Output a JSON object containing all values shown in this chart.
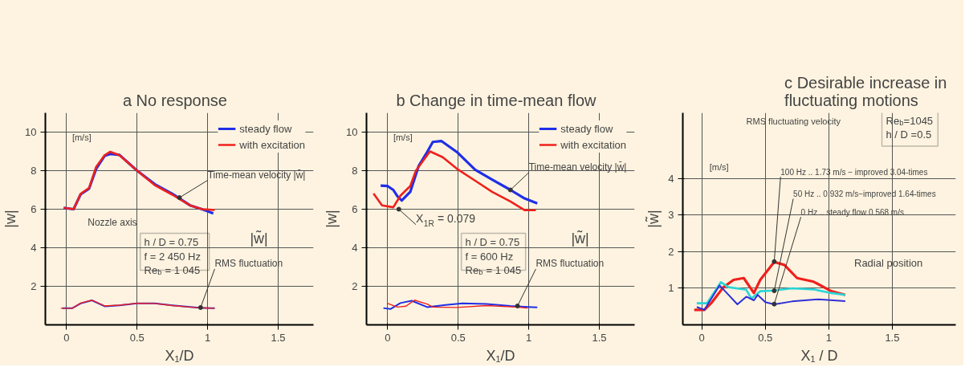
{
  "chart_data": [
    {
      "type": "line",
      "title": "No response",
      "xlabel": "X₁/D",
      "ylabel": "|w|",
      "xlim": [
        -0.15,
        1.75
      ],
      "ylim": [
        0,
        11
      ],
      "xticks": [
        0,
        0.5,
        1,
        1.5
      ],
      "yticks": [
        2,
        4,
        6,
        8,
        10
      ],
      "grid": true,
      "legend": "top right",
      "line_style": "solid",
      "marker": "none",
      "annotations": [
        "a",
        "[m/s]",
        "Nozzle axis",
        "h / D = 0.75\nf = 2 450 Hz\nRe$_{b}$ = 1 045",
        "|w̃|",
        {
          "text": "Time-mean velocity |w̄|",
          "x": 0.8,
          "y": 6.6
        },
        {
          "text": "RMS fluctuation",
          "x": 0.95,
          "y": 0.9
        }
      ],
      "series": [
        {
          "name": "steady flow",
          "color": "#1f2ee8",
          "x": [
            -0.02,
            0.05,
            0.1,
            0.16,
            0.21,
            0.27,
            0.31,
            0.375,
            0.5,
            0.625,
            0.75,
            0.875,
            0.96,
            1.04
          ],
          "values": [
            6.07,
            6.0,
            6.77,
            7.07,
            8.1,
            8.77,
            8.87,
            8.82,
            8.0,
            7.3,
            6.8,
            6.2,
            6.0,
            5.78
          ]
        },
        {
          "name": "with excitation",
          "color": "#f0201c",
          "x": [
            -0.02,
            0.05,
            0.1,
            0.16,
            0.21,
            0.27,
            0.31,
            0.375,
            0.5,
            0.625,
            0.75,
            0.875,
            0.96,
            1.05
          ],
          "values": [
            6.07,
            6.0,
            6.8,
            7.1,
            8.2,
            8.8,
            8.98,
            8.8,
            8.0,
            7.25,
            6.75,
            6.2,
            6.0,
            5.96
          ]
        },
        {
          "color": "#1f2ee8",
          "x": [
            -0.03,
            0.04,
            0.1,
            0.18,
            0.27,
            0.375,
            0.5,
            0.625,
            0.75,
            0.875,
            0.96,
            1.05
          ],
          "values": [
            0.86,
            0.86,
            1.11,
            1.27,
            0.96,
            1.01,
            1.11,
            1.11,
            1.01,
            0.93,
            0.88,
            0.86
          ]
        },
        {
          "color": "#f0201c",
          "x": [
            -0.04,
            0.04,
            0.1,
            0.18,
            0.27,
            0.375,
            0.5,
            0.625,
            0.75,
            0.875,
            0.96,
            1.05
          ],
          "values": [
            0.86,
            0.86,
            1.13,
            1.28,
            0.98,
            1.02,
            1.12,
            1.11,
            1.0,
            0.92,
            0.88,
            0.86
          ]
        }
      ]
    },
    {
      "type": "line",
      "title": "Change in time-mean flow",
      "xlabel": "X₁/D",
      "ylabel": "|w|",
      "xlim": [
        -0.15,
        1.75
      ],
      "ylim": [
        0,
        11
      ],
      "xticks": [
        0,
        0.5,
        1,
        1.5
      ],
      "yticks": [
        2,
        4,
        6,
        8,
        10
      ],
      "grid": true,
      "legend": "top right",
      "line_style": "solid",
      "marker": "none",
      "annotations": [
        "b",
        "[m/s]",
        "h / D = 0.75\nf = 600 Hz\nRe$_{b}$ = 1 045",
        "|w̃|",
        {
          "text": "X$_{1R}$ = 0.079",
          "x": 0.079,
          "y": 6
        },
        {
          "text": "Time-mean velocity |w̄|",
          "x": 0.87,
          "y": 7.0
        },
        {
          "text": "RMS fluctuation",
          "x": 0.92,
          "y": 0.98
        }
      ],
      "series": [
        {
          "name": "steady flow",
          "color": "#1f2ee8",
          "x": [
            -0.05,
            0,
            0.04,
            0.07,
            0.1,
            0.16,
            0.22,
            0.28,
            0.32,
            0.38,
            0.49,
            0.62,
            0.74,
            0.87,
            0.97,
            1.06
          ],
          "values": [
            7.22,
            7.2,
            7.0,
            6.66,
            6.45,
            6.9,
            8.25,
            8.97,
            9.49,
            9.54,
            8.97,
            8.05,
            7.54,
            7.0,
            6.56,
            6.3
          ]
        },
        {
          "name": "with excitation",
          "color": "#f0201c",
          "x": [
            -0.1,
            -0.04,
            0.04,
            0.09,
            0.16,
            0.2,
            0.3,
            0.39,
            0.49,
            0.62,
            0.74,
            0.87,
            0.97,
            1.05
          ],
          "values": [
            6.81,
            6.2,
            6.1,
            6.7,
            7.2,
            8.0,
            9.0,
            8.7,
            8.1,
            7.48,
            6.9,
            6.4,
            5.95,
            5.95
          ]
        },
        {
          "color": "#1f2ee8",
          "x": [
            -0.03,
            0.02,
            0.09,
            0.17,
            0.28,
            0.41,
            0.53,
            0.7,
            0.87,
            0.99,
            1.06
          ],
          "values": [
            0.87,
            0.82,
            1.13,
            1.25,
            0.92,
            1.03,
            1.11,
            1.08,
            0.98,
            0.93,
            0.91
          ]
        },
        {
          "color": "#f0201c",
          "x": [
            0,
            0.07,
            0.13,
            0.19,
            0.28,
            0.32,
            0.49,
            0.7,
            0.91,
            0.99
          ],
          "values": [
            1.11,
            0.92,
            0.97,
            1.28,
            1.08,
            0.92,
            0.9,
            1.0,
            0.92,
            0.87
          ]
        }
      ]
    },
    {
      "type": "line",
      "title": "Desirable increase in fluctuating motions",
      "xlabel": "X₁ / D",
      "ylabel": "|w̃|",
      "xlim": [
        -0.15,
        2.0
      ],
      "ylim": [
        0,
        5.8
      ],
      "xticks": [
        0,
        0.5,
        1,
        1.5
      ],
      "yticks": [
        1,
        2,
        3,
        4
      ],
      "grid": true,
      "line_style": "solid",
      "marker": "none",
      "annotations": [
        "c",
        "[m/s]",
        "RMS fluctuating velocity",
        "Re$_{b}$=1045\nh / D =0.5",
        "Radial position",
        {
          "text": "100 Hz .. 1.73 m/s − improved 3.04-times",
          "x": 0.57,
          "y": 1.73
        },
        {
          "text": "50 Hz .. 0.932 m/s−improved 1.64-times",
          "x": 0.57,
          "y": 0.932
        },
        {
          "text": "0 Hz .. steady flow 0.568 m/s",
          "x": 0.57,
          "y": 0.568
        }
      ],
      "series": [
        {
          "color": "#f0201c",
          "x": [
            -0.06,
            0.02,
            0.08,
            0.17,
            0.25,
            0.33,
            0.41,
            0.46,
            0.57,
            0.65,
            0.75,
            0.88,
            1.02,
            1.13
          ],
          "values": [
            0.41,
            0.41,
            0.62,
            1.03,
            1.23,
            1.28,
            0.87,
            1.23,
            1.72,
            1.64,
            1.28,
            1.18,
            0.92,
            0.82
          ]
        },
        {
          "color": "#2ad4d8",
          "x": [
            -0.04,
            0.04,
            0.15,
            0.21,
            0.35,
            0.39,
            0.46,
            0.57,
            0.71,
            0.88,
            1.02,
            1.13
          ],
          "values": [
            0.59,
            0.59,
            1.17,
            1.03,
            0.96,
            0.72,
            0.92,
            0.94,
            1.0,
            0.97,
            0.87,
            0.82
          ]
        },
        {
          "color": "#2f2fd8",
          "x": [
            -0.04,
            0.02,
            0.14,
            0.21,
            0.28,
            0.35,
            0.41,
            0.44,
            0.5,
            0.57,
            0.71,
            0.92,
            1.13
          ],
          "values": [
            0.49,
            0.41,
            1.08,
            0.82,
            0.56,
            0.77,
            0.67,
            0.82,
            0.62,
            0.56,
            0.64,
            0.7,
            0.65
          ]
        }
      ]
    }
  ]
}
